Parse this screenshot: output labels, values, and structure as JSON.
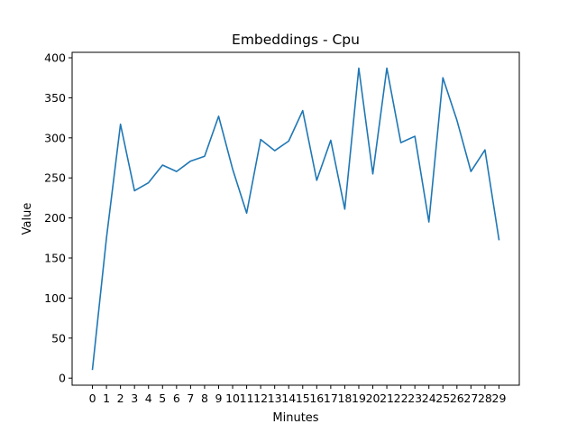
{
  "chart_data": {
    "type": "line",
    "title": "Embeddings - Cpu",
    "xlabel": "Minutes",
    "ylabel": "Value",
    "x": [
      0,
      1,
      2,
      3,
      4,
      5,
      6,
      7,
      8,
      9,
      10,
      11,
      12,
      13,
      14,
      15,
      16,
      17,
      18,
      19,
      20,
      21,
      22,
      23,
      24,
      25,
      26,
      27,
      28,
      29
    ],
    "x_tick_labels": [
      "0",
      "1",
      "2",
      "3",
      "4",
      "5",
      "6",
      "7",
      "8",
      "9",
      "10",
      "11",
      "12",
      "13",
      "14",
      "15",
      "16",
      "17",
      "18",
      "19",
      "20",
      "21",
      "22",
      "23",
      "24",
      "25",
      "26",
      "27",
      "28",
      "29"
    ],
    "y_ticks": [
      0,
      50,
      100,
      150,
      200,
      250,
      300,
      350,
      400
    ],
    "y_tick_labels": [
      "0",
      "50",
      "100",
      "150",
      "200",
      "250",
      "300",
      "350",
      "400"
    ],
    "series": [
      {
        "name": "Cpu",
        "color": "#1f77b4",
        "values": [
          11,
          175,
          317,
          234,
          244,
          266,
          258,
          271,
          277,
          327,
          261,
          206,
          298,
          284,
          296,
          334,
          247,
          297,
          211,
          387,
          255,
          387,
          294,
          302,
          195,
          375,
          322,
          258,
          285,
          173
        ]
      }
    ],
    "xlim": [
      -1.45,
      30.45
    ],
    "ylim": [
      -8.8,
      406.8
    ],
    "grid": false,
    "legend": "none"
  }
}
